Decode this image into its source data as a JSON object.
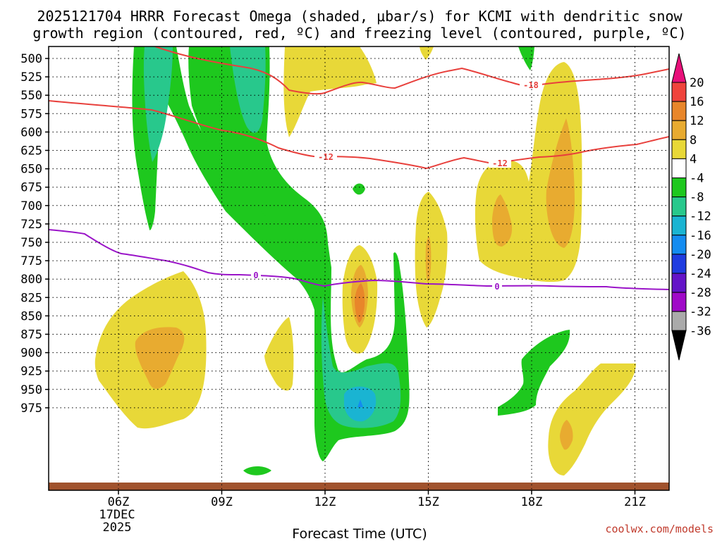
{
  "chart_data": {
    "type": "heatmap",
    "title_line1": "2025121704 HRRR Forecast Omega (shaded, μbar/s) for KCMI with dendritic snow",
    "title_line2": "growth region (contoured, red, ºC) and freezing level (contoured, purple, ºC)",
    "xlabel": "Forecast Time (UTC)",
    "credit": "coolwx.com/models",
    "x_ticks": [
      "06Z",
      "09Z",
      "12Z",
      "15Z",
      "18Z",
      "21Z"
    ],
    "x_date_label": [
      "17DEC",
      "2025"
    ],
    "y_ticks": [
      "500",
      "525",
      "550",
      "575",
      "600",
      "625",
      "650",
      "675",
      "700",
      "725",
      "750",
      "775",
      "800",
      "825",
      "850",
      "875",
      "900",
      "925",
      "950",
      "975"
    ],
    "colorbar": {
      "labels": [
        "20",
        "16",
        "12",
        "8",
        "4",
        "-4",
        "-8",
        "-12",
        "-16",
        "-20",
        "-24",
        "-28",
        "-32",
        "-36"
      ],
      "colors": [
        "#e8107a",
        "#f0443c",
        "#e8862a",
        "#e8ab30",
        "#e8d838",
        "#ffffff",
        "#1ec81e",
        "#28c88c",
        "#1ab4d2",
        "#148cf0",
        "#1f3ce0",
        "#6414c8",
        "#a00ac8",
        "#aaaaaa",
        "#000000"
      ]
    },
    "contour_lines": [
      {
        "name": "-18",
        "color": "#e8403c",
        "label": "-18"
      },
      {
        "name": "-12",
        "color": "#e8403c",
        "label": "-12"
      },
      {
        "name": "0",
        "color": "#9a14c8",
        "label": "0"
      }
    ]
  }
}
